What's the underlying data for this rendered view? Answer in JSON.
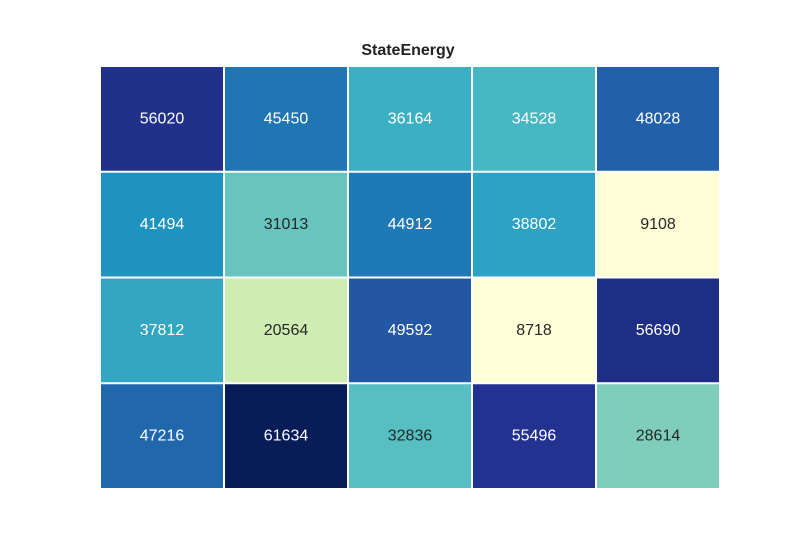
{
  "chart_data": {
    "type": "heatmap",
    "title": "StateEnergy",
    "xlabel": "",
    "ylabel": "",
    "rows": 4,
    "cols": 5,
    "values": [
      [
        56020,
        45450,
        36164,
        34528,
        48028
      ],
      [
        41494,
        31013,
        44912,
        38802,
        9108
      ],
      [
        37812,
        20564,
        49592,
        8718,
        56690
      ],
      [
        47216,
        61634,
        32836,
        55496,
        28614
      ]
    ],
    "colormap": "YlGnBu",
    "grid": false,
    "legend": "none",
    "cell_border_color": "#ffffff"
  }
}
